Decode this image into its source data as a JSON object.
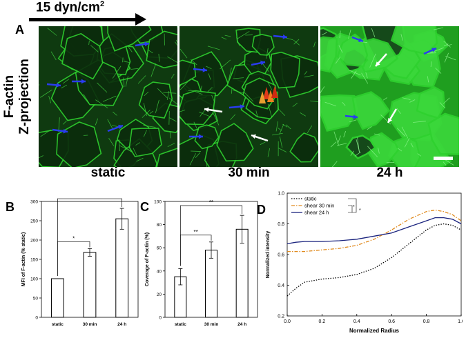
{
  "header": {
    "flow_label": "15 dyn/cm",
    "flow_unit_sup": "2"
  },
  "panels": {
    "a": "A",
    "b": "B",
    "c": "C",
    "d": "D"
  },
  "side_label": {
    "line1": "F-actin",
    "line2": "Z-projection"
  },
  "conditions": [
    "static",
    "30 min",
    "24 h"
  ],
  "colors": {
    "actin_green": "#2fd12f",
    "arrow_blue": "#2a3cf0",
    "arrow_white": "#ffffff"
  },
  "chart_data": [
    {
      "type": "bar",
      "panel": "B",
      "categories": [
        "static",
        "30 min",
        "24 h"
      ],
      "values": [
        100,
        168,
        255
      ],
      "errors": [
        0,
        10,
        27
      ],
      "ylabel": "MFI of F-actin (% static)",
      "ylim": [
        0,
        300
      ],
      "yticks": [
        "0",
        "50",
        "100",
        "150",
        "200",
        "250",
        "300"
      ],
      "significance": [
        {
          "from": "static",
          "to": "30 min",
          "label": "*"
        },
        {
          "from": "static",
          "to": "24 h",
          "label": "*"
        }
      ]
    },
    {
      "type": "bar",
      "panel": "C",
      "categories": [
        "static",
        "30 min",
        "24 h"
      ],
      "values": [
        35,
        58,
        76
      ],
      "errors": [
        7,
        7,
        12
      ],
      "ylabel": "Coverage of F-actin (%)",
      "ylim": [
        0,
        100
      ],
      "yticks": [
        "0",
        "20",
        "40",
        "60",
        "80",
        "100"
      ],
      "significance": [
        {
          "from": "static",
          "to": "30 min",
          "label": "**"
        },
        {
          "from": "static",
          "to": "24 h",
          "label": "**"
        }
      ]
    },
    {
      "type": "line",
      "panel": "D",
      "xlabel": "Normalized Radius",
      "ylabel": "Normalized intensity",
      "xlim": [
        0,
        1
      ],
      "ylim": [
        0.2,
        1.0
      ],
      "xticks": [
        "0.0",
        "0.2",
        "0.4",
        "0.6",
        "0.8",
        "1.0"
      ],
      "yticks": [
        "0.2",
        "0.4",
        "0.6",
        "0.8",
        "1.0"
      ],
      "legend_position": "top-left",
      "significance": [
        "*",
        "*"
      ],
      "series": [
        {
          "name": "static",
          "color": "#000000",
          "style": "dotted",
          "x": [
            0,
            0.05,
            0.1,
            0.2,
            0.3,
            0.4,
            0.5,
            0.6,
            0.7,
            0.8,
            0.85,
            0.9,
            0.95,
            1.0
          ],
          "y": [
            0.33,
            0.38,
            0.42,
            0.44,
            0.45,
            0.47,
            0.51,
            0.58,
            0.67,
            0.76,
            0.79,
            0.8,
            0.79,
            0.76
          ]
        },
        {
          "name": "shear 30 min",
          "color": "#e08a1e",
          "style": "dashdot",
          "x": [
            0,
            0.1,
            0.2,
            0.3,
            0.4,
            0.5,
            0.6,
            0.7,
            0.8,
            0.85,
            0.9,
            0.95,
            1.0
          ],
          "y": [
            0.62,
            0.62,
            0.63,
            0.64,
            0.66,
            0.7,
            0.76,
            0.83,
            0.88,
            0.89,
            0.88,
            0.86,
            0.82
          ]
        },
        {
          "name": "shear 24 h",
          "color": "#1a237e",
          "style": "solid",
          "x": [
            0,
            0.05,
            0.1,
            0.2,
            0.3,
            0.4,
            0.5,
            0.6,
            0.7,
            0.8,
            0.85,
            0.9,
            0.95,
            1.0
          ],
          "y": [
            0.67,
            0.68,
            0.685,
            0.685,
            0.69,
            0.7,
            0.72,
            0.74,
            0.78,
            0.82,
            0.84,
            0.84,
            0.83,
            0.8
          ]
        }
      ]
    }
  ]
}
